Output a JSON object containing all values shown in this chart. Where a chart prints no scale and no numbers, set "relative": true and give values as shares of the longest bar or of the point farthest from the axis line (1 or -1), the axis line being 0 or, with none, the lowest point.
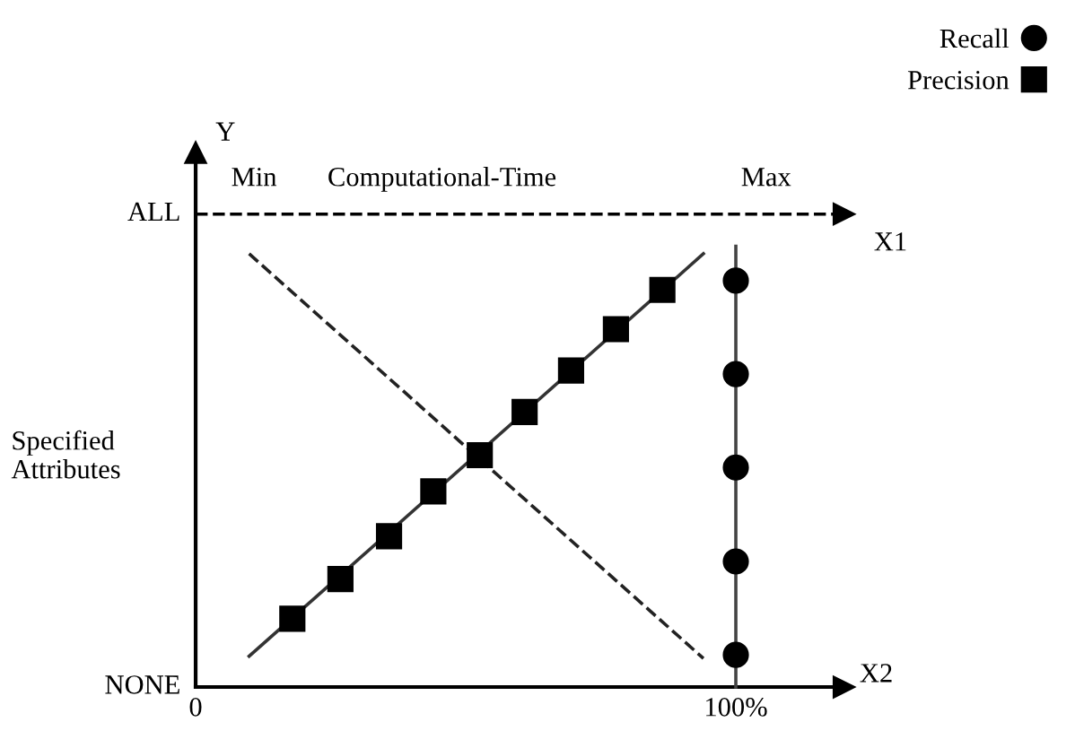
{
  "chart_data": {
    "type": "line",
    "relative": true,
    "xlabel": "X2",
    "ylabel": "Specified Attributes",
    "x2label": "Computational-Time",
    "annotations": [
      "Y",
      "Min",
      "Max",
      "NONE",
      "ALL"
    ],
    "xlim": [
      0,
      120
    ],
    "xticks": [
      0,
      {
        "value": 100,
        "label": "100%"
      }
    ],
    "ref_lines": [
      {
        "axis": "y",
        "value": 1.073,
        "label": "X1",
        "line_style": "dashed",
        "color": "#000000"
      }
    ],
    "legend": "top right",
    "series": [
      {
        "name": "Recall",
        "type": "scatter",
        "marker": "circle",
        "color": "#000000",
        "x": [
          100,
          100,
          100,
          100,
          100
        ],
        "values": [
          0.922,
          0.71,
          0.498,
          0.285,
          0.073
        ]
      },
      {
        "name": "Precision",
        "type": "scatter",
        "marker": "square",
        "color": "#000000",
        "x": [
          17.9,
          26.8,
          35.8,
          44.0,
          52.6,
          60.9,
          69.5,
          77.8,
          86.4
        ],
        "values": [
          0.155,
          0.245,
          0.342,
          0.444,
          0.526,
          0.624,
          0.718,
          0.812,
          0.901
        ]
      },
      {
        "color": "#444444",
        "line_style": "solid",
        "x": [
          100,
          100,
          100
        ],
        "values": [
          0,
          0.25,
          1
        ]
      },
      {
        "color": "#333333",
        "line_style": "solid",
        "x": [
          9.9,
          94
        ],
        "values": [
          0.07,
          0.983
        ]
      },
      {
        "color": "#222222",
        "line_style": "dashed",
        "x": [
          9.9,
          94
        ],
        "values": [
          0.983,
          0.065
        ]
      }
    ]
  }
}
